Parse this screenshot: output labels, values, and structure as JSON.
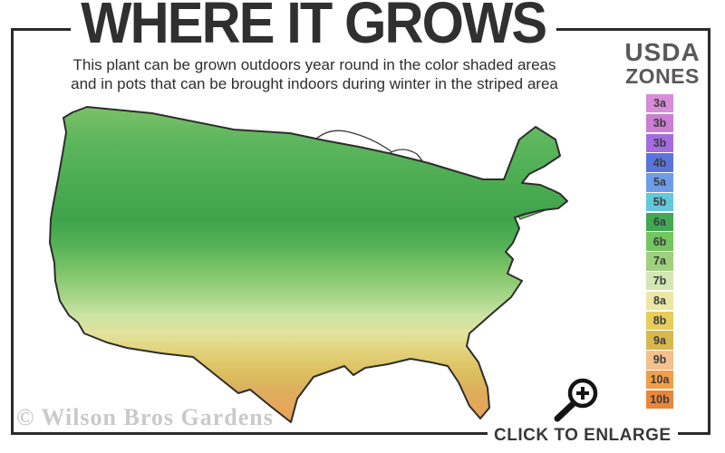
{
  "title": "WHERE IT GROWS",
  "subtitle": {
    "line1": "This plant can be grown outdoors year round in the color shaded areas",
    "line2": "and in pots that can be brought indoors during winter in the striped area"
  },
  "legend": {
    "title_line1": "USDA",
    "title_line2": "ZONES",
    "zones": [
      {
        "label": "3a",
        "color": "#d98cd9"
      },
      {
        "label": "3b",
        "color": "#cb7ed2"
      },
      {
        "label": "3b",
        "color": "#a56ce2"
      },
      {
        "label": "4b",
        "color": "#5b74dc"
      },
      {
        "label": "5a",
        "color": "#6e9ce8"
      },
      {
        "label": "5b",
        "color": "#62c8da"
      },
      {
        "label": "6a",
        "color": "#41a854"
      },
      {
        "label": "6b",
        "color": "#74c55f"
      },
      {
        "label": "7a",
        "color": "#9ed07e"
      },
      {
        "label": "7b",
        "color": "#d3e7b5"
      },
      {
        "label": "8a",
        "color": "#ebe7a6"
      },
      {
        "label": "8b",
        "color": "#e7cd5c"
      },
      {
        "label": "9a",
        "color": "#d8b84c"
      },
      {
        "label": "9b",
        "color": "#f4c08d"
      },
      {
        "label": "10a",
        "color": "#f29d49"
      },
      {
        "label": "10b",
        "color": "#e8873a"
      }
    ]
  },
  "map": {
    "region": "United States",
    "palette": {
      "north_green": "#4fae52",
      "mid_green": "#8cc973",
      "pale_green": "#d5e7ac",
      "yellow": "#e4cd6f",
      "gold": "#d9b85a",
      "orange": "#ef9d52",
      "coast_salmon": "#eeae7f",
      "stripe_light": "#fdfdfd",
      "stripe_dark": "#ececec"
    }
  },
  "watermark": "© Wilson Bros Gardens",
  "enlarge": {
    "label": "CLICK TO ENLARGE",
    "icon": "magnifier-plus-icon"
  }
}
